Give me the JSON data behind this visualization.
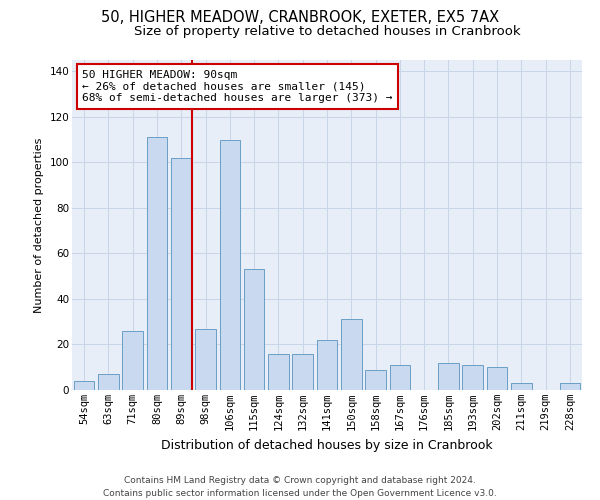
{
  "title_line1": "50, HIGHER MEADOW, CRANBROOK, EXETER, EX5 7AX",
  "title_line2": "Size of property relative to detached houses in Cranbrook",
  "xlabel": "Distribution of detached houses by size in Cranbrook",
  "ylabel": "Number of detached properties",
  "bar_color": "#c9d9f0",
  "bar_edge_color": "#6a9ec5",
  "categories": [
    "54sqm",
    "63sqm",
    "71sqm",
    "80sqm",
    "89sqm",
    "98sqm",
    "106sqm",
    "115sqm",
    "124sqm",
    "132sqm",
    "141sqm",
    "150sqm",
    "158sqm",
    "167sqm",
    "176sqm",
    "185sqm",
    "193sqm",
    "202sqm",
    "211sqm",
    "219sqm",
    "228sqm"
  ],
  "values": [
    4,
    7,
    26,
    111,
    102,
    27,
    110,
    53,
    16,
    16,
    22,
    31,
    9,
    11,
    0,
    12,
    11,
    10,
    3,
    0,
    3
  ],
  "ylim": [
    0,
    145
  ],
  "yticks": [
    0,
    20,
    40,
    60,
    80,
    100,
    120,
    140
  ],
  "property_line_x": 4,
  "property_line_label": "50 HIGHER MEADOW: 90sqm",
  "annotation_line1": "← 26% of detached houses are smaller (145)",
  "annotation_line2": "68% of semi-detached houses are larger (373) →",
  "vline_color": "#cc0000",
  "annotation_box_color": "#ffffff",
  "annotation_box_edge_color": "#cc0000",
  "grid_color": "#c8d4e8",
  "background_color": "#e8eef8",
  "footer_line1": "Contains HM Land Registry data © Crown copyright and database right 2024.",
  "footer_line2": "Contains public sector information licensed under the Open Government Licence v3.0.",
  "title_fontsize": 10.5,
  "subtitle_fontsize": 9.5,
  "ylabel_fontsize": 8,
  "xlabel_fontsize": 9,
  "tick_fontsize": 7.5,
  "annotation_fontsize": 8,
  "footer_fontsize": 6.5
}
